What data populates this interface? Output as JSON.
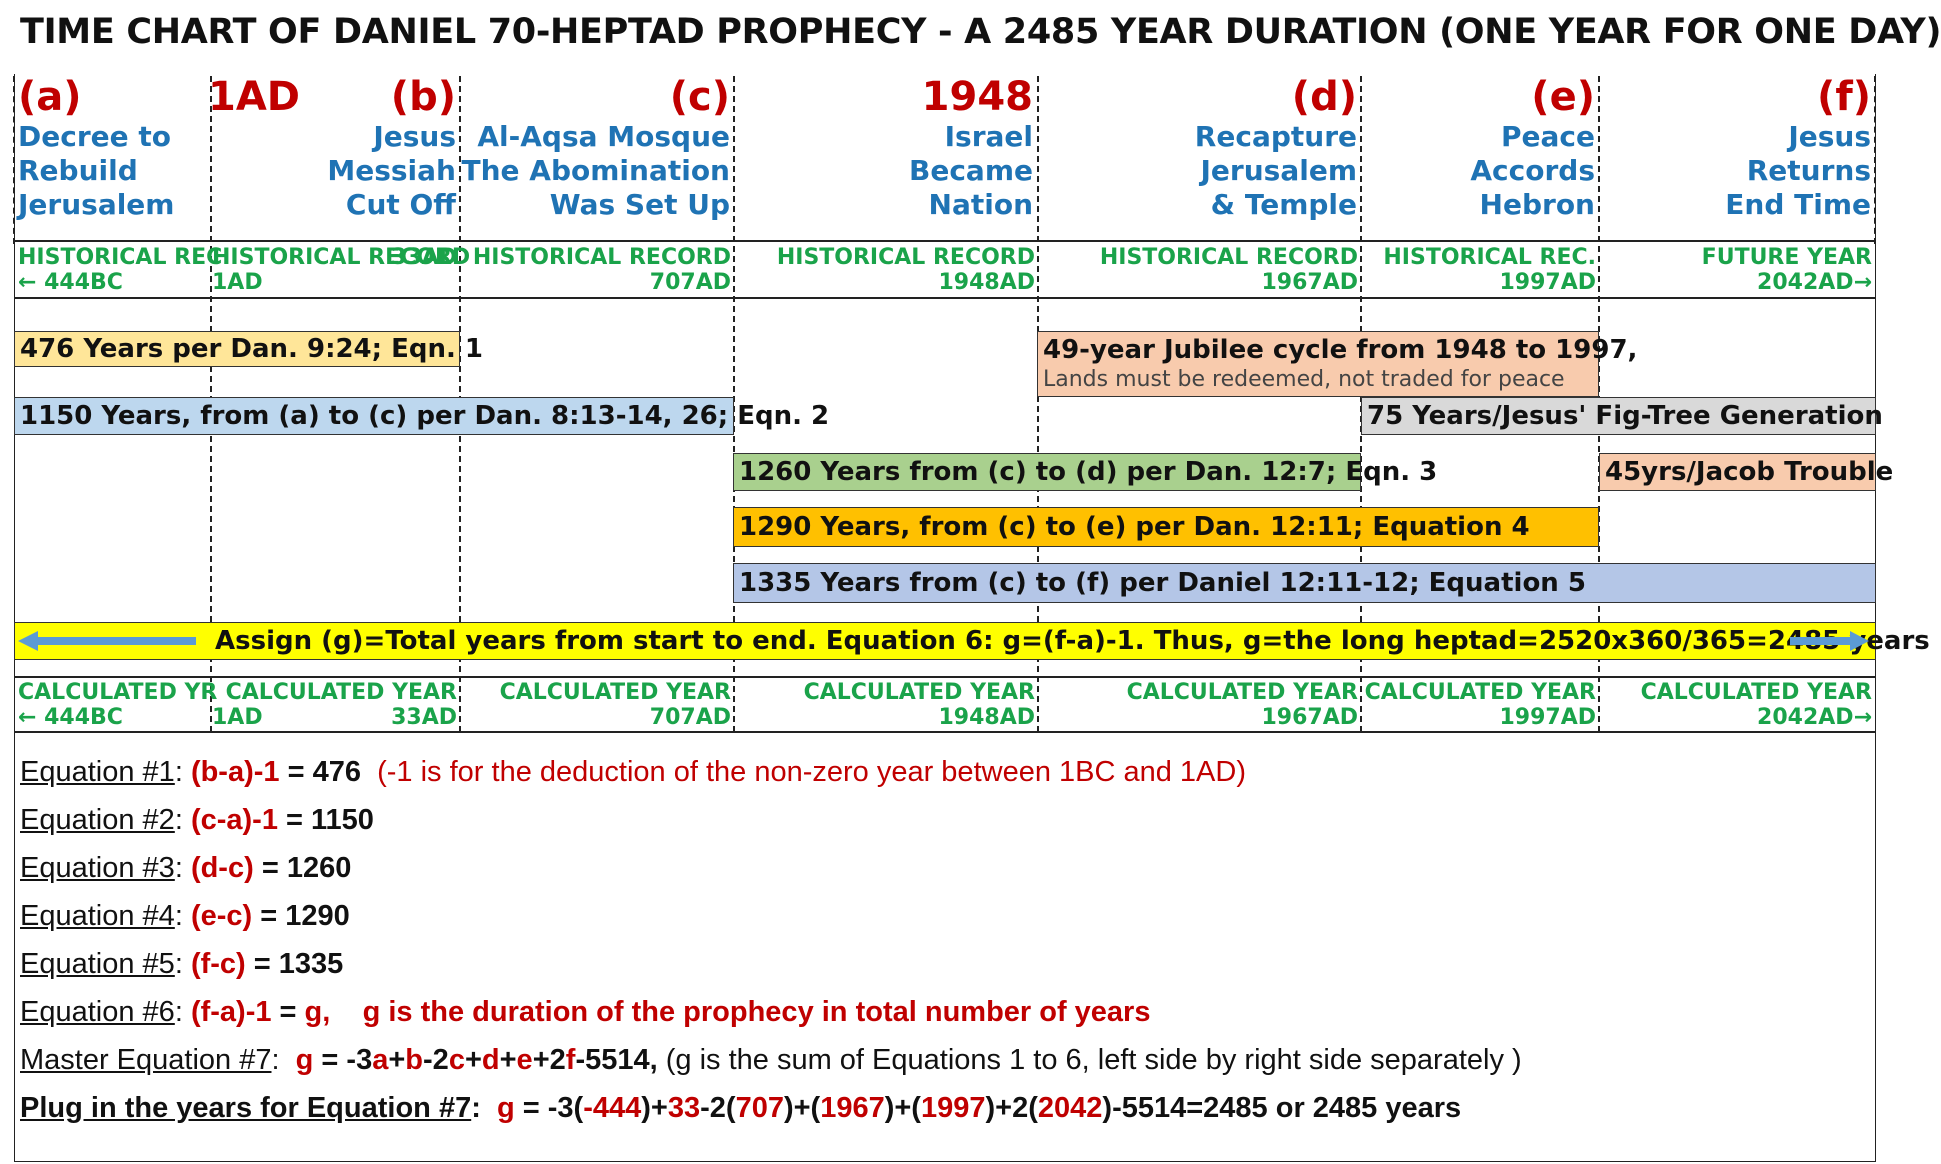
{
  "title": "TIME CHART OF DANIEL 70-HEPTAD PROPHECY  -  A 2485 YEAR DURATION (ONE YEAR FOR ONE DAY)",
  "colors": {
    "red": "#c00000",
    "blue_text": "#1f73b4",
    "green_text": "#1aa34a",
    "bar_476": "#ffe699",
    "bar_1150": "#bdd7ee",
    "bar_jubilee": "#f8cbad",
    "bar_75": "#d9d9d9",
    "bar_1260": "#a9d08e",
    "bar_45": "#f8cbad",
    "bar_1290": "#ffc000",
    "bar_1335": "#b4c6e7",
    "bar_assign": "#ffff00",
    "arrow": "#5b9bd5"
  },
  "columns": [
    {
      "letter": "(a)",
      "desc": [
        "Decree to",
        "Rebuild",
        "Jerusalem"
      ]
    },
    {
      "letter": "1AD",
      "desc": []
    },
    {
      "letter": "(b)",
      "desc": [
        "Jesus",
        "Messiah",
        "Cut Off"
      ]
    },
    {
      "letter": "(c)",
      "desc": [
        "Al-Aqsa Mosque",
        "The Abomination",
        "Was Set Up"
      ]
    },
    {
      "letter": "1948",
      "desc": [
        "Israel",
        "Became",
        "Nation"
      ]
    },
    {
      "letter": "(d)",
      "desc": [
        "Recapture",
        "Jerusalem",
        "& Temple"
      ]
    },
    {
      "letter": "(e)",
      "desc": [
        "Peace",
        "Accords",
        "Hebron"
      ]
    },
    {
      "letter": "(f)",
      "desc": [
        "Jesus",
        "Returns",
        "End Time"
      ]
    }
  ],
  "historical": [
    {
      "label": "HISTORICAL REC",
      "year": "← 444BC"
    },
    {
      "label": "HISTORICAL RECORD",
      "year": "1AD"
    },
    {
      "label": "",
      "year": "33AD"
    },
    {
      "label": "HISTORICAL RECORD",
      "year": "707AD"
    },
    {
      "label": "HISTORICAL RECORD",
      "year": "1948AD"
    },
    {
      "label": "HISTORICAL RECORD",
      "year": "1967AD"
    },
    {
      "label": "HISTORICAL REC.",
      "year": "1997AD"
    },
    {
      "label": "FUTURE YEAR",
      "year": "2042AD→"
    }
  ],
  "bars": {
    "b476": "476 Years per Dan. 9:24; Eqn. 1",
    "jubilee": "49-year Jubilee cycle from 1948 to 1997,",
    "jubilee_sub": "Lands must be redeemed, not traded for peace",
    "b1150": "1150 Years, from (a) to (c) per Dan. 8:13-14, 26; Eqn. 2",
    "b75": "75 Years/Jesus' Fig-Tree Generation",
    "b1260": "1260 Years from (c) to (d) per Dan. 12:7; Eqn. 3",
    "b45": "45yrs/Jacob Trouble",
    "b1290": "1290 Years, from (c) to (e) per Dan. 12:11; Equation 4",
    "b1335": "1335 Years from (c) to (f) per Daniel 12:11-12; Equation 5",
    "assign": "Assign (g)=Total years from start to end. Equation 6: g=(f-a)-1. Thus, g=the long heptad=2520x360/365=2485 years"
  },
  "calculated": [
    {
      "label": "CALCULATED YR",
      "year": "← 444BC"
    },
    {
      "label": "CALCULATED YEAR",
      "year": "1AD"
    },
    {
      "label": "",
      "year": "33AD"
    },
    {
      "label": "CALCULATED YEAR",
      "year": "707AD"
    },
    {
      "label": "CALCULATED YEAR",
      "year": "1948AD"
    },
    {
      "label": "CALCULATED YEAR",
      "year": "1967AD"
    },
    {
      "label": "CALCULATED YEAR",
      "year": "1997AD"
    },
    {
      "label": "CALCULATED YEAR",
      "year": "2042AD→"
    }
  ],
  "equations": {
    "e1": {
      "name": "Equation #1",
      "expr": "(b-a)-1",
      "result": " = 476",
      "note": "(-1 is for the deduction of the non-zero year between 1BC and 1AD)"
    },
    "e2": {
      "name": "Equation #2",
      "expr": "(c-a)-1",
      "result": " = 1150"
    },
    "e3": {
      "name": "Equation #3",
      "expr": "(d-c)",
      "result": " = 1260"
    },
    "e4": {
      "name": "Equation #4",
      "expr": "(e-c)",
      "result": " = 1290"
    },
    "e5": {
      "name": "Equation #5",
      "expr": "(f-c)",
      "result": " = 1335"
    },
    "e6": {
      "name": "Equation #6",
      "expr": "(f-a)-1",
      "result": " = ",
      "g": "g,",
      "note": "g is the duration of the prophecy in total number of years"
    },
    "e7": {
      "name": "Master Equation #7",
      "note": "(g is the sum of Equations 1 to 6, left side by right side separately )"
    },
    "e8": {
      "name": "Plug in the years for Equation #7",
      "tail": "-5514=2485 or 2485 years"
    }
  }
}
